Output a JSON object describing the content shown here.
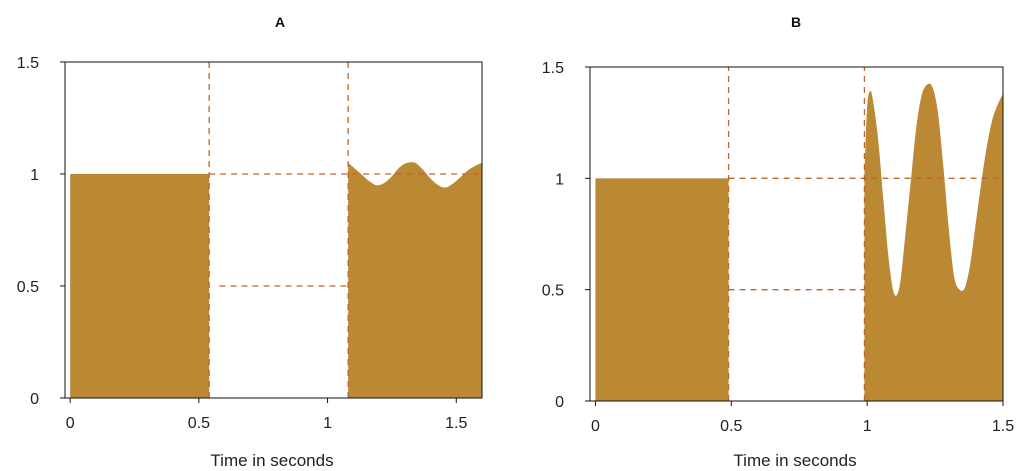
{
  "colors": {
    "fill": "#bb8834",
    "guide": "#c0652a",
    "axis": "#111111"
  },
  "chart_data": [
    {
      "type": "area",
      "title": "A",
      "xlabel": "Time in seconds",
      "ylabel": "",
      "xlim": [
        -0.02,
        1.6
      ],
      "ylim": [
        0,
        1.5
      ],
      "x_ticks": [
        0,
        0.5,
        1,
        1.5
      ],
      "x_tick_labels": [
        "0",
        "0.5",
        "1",
        "1.5"
      ],
      "y_ticks": [
        0,
        0.5,
        1,
        1.5
      ],
      "y_tick_labels": [
        "0",
        "0.5",
        "1",
        "1.5"
      ],
      "segments": [
        {
          "x": [
            0,
            0.54
          ],
          "y": [
            1,
            1
          ]
        },
        {
          "x": [
            1.08,
            1.1,
            1.13,
            1.16,
            1.19,
            1.22,
            1.25,
            1.28,
            1.31,
            1.34,
            1.37,
            1.4,
            1.43,
            1.46,
            1.49,
            1.52,
            1.55,
            1.58,
            1.6
          ],
          "y": [
            1.05,
            1.03,
            1.0,
            0.97,
            0.95,
            0.96,
            0.99,
            1.03,
            1.05,
            1.05,
            1.02,
            0.98,
            0.95,
            0.94,
            0.96,
            0.99,
            1.02,
            1.04,
            1.05
          ]
        }
      ],
      "guides": [
        {
          "orient": "v",
          "x": 0.54,
          "y_range": [
            0,
            1.5
          ]
        },
        {
          "orient": "v",
          "x": 1.08,
          "y_range": [
            0,
            1.5
          ]
        },
        {
          "orient": "h",
          "y": 1.0,
          "x_range": [
            0.54,
            1.6
          ]
        },
        {
          "orient": "h",
          "y": 0.5,
          "x_range": [
            0.58,
            1.08
          ]
        }
      ]
    },
    {
      "type": "area",
      "title": "B",
      "xlabel": "Time in seconds",
      "ylabel": "",
      "xlim": [
        -0.02,
        1.5
      ],
      "ylim": [
        0,
        1.5
      ],
      "x_ticks": [
        0,
        0.5,
        1,
        1.5
      ],
      "x_tick_labels": [
        "0",
        "0.5",
        "1",
        "1.5"
      ],
      "y_ticks": [
        0,
        0.5,
        1,
        1.5
      ],
      "y_tick_labels": [
        "0",
        "0.5",
        "1",
        "1.5"
      ],
      "segments": [
        {
          "x": [
            0,
            0.49
          ],
          "y": [
            1,
            1
          ]
        },
        {
          "x": [
            0.99,
            1.0,
            1.01,
            1.02,
            1.04,
            1.06,
            1.08,
            1.1,
            1.12,
            1.14,
            1.16,
            1.18,
            1.2,
            1.22,
            1.24,
            1.26,
            1.28,
            1.3,
            1.32,
            1.34,
            1.36,
            1.38,
            1.4,
            1.42,
            1.44,
            1.46,
            1.48,
            1.5
          ],
          "y": [
            1.02,
            1.32,
            1.39,
            1.36,
            1.18,
            0.9,
            0.63,
            0.48,
            0.52,
            0.74,
            0.98,
            1.22,
            1.37,
            1.42,
            1.41,
            1.3,
            1.06,
            0.78,
            0.56,
            0.5,
            0.51,
            0.62,
            0.8,
            0.98,
            1.14,
            1.26,
            1.33,
            1.38
          ]
        }
      ],
      "guides": [
        {
          "orient": "v",
          "x": 0.49,
          "y_range": [
            0,
            1.5
          ]
        },
        {
          "orient": "v",
          "x": 0.99,
          "y_range": [
            0,
            1.5
          ]
        },
        {
          "orient": "h",
          "y": 1.0,
          "x_range": [
            0.49,
            1.5
          ]
        },
        {
          "orient": "h",
          "y": 0.5,
          "x_range": [
            0.49,
            0.99
          ]
        }
      ]
    }
  ]
}
